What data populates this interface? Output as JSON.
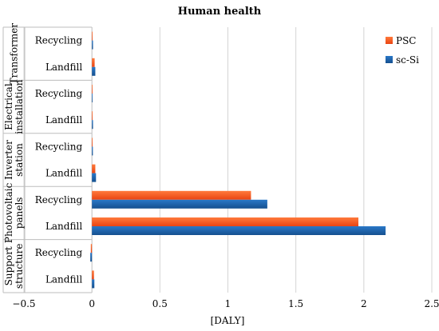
{
  "chart_data": {
    "type": "bar",
    "orientation": "horizontal",
    "title": "Human health",
    "xlabel": "[DALY]",
    "ylabel": "",
    "xlim": [
      -0.5,
      2.5
    ],
    "xticks": [
      -0.5,
      0,
      0.5,
      1,
      1.5,
      2,
      2.5
    ],
    "xtick_labels": [
      "−0.5",
      "0",
      "0.5",
      "1",
      "1.5",
      "2",
      "2.5"
    ],
    "grid": "vertical",
    "legend_position": "top-right",
    "groups": [
      {
        "label_lines": [
          "Transformer"
        ],
        "categories": [
          "Recycling",
          "Landfill"
        ]
      },
      {
        "label_lines": [
          "Electrical",
          "installation"
        ],
        "categories": [
          "Recycling",
          "Landfill"
        ]
      },
      {
        "label_lines": [
          "Inverter",
          "station"
        ],
        "categories": [
          "Recycling",
          "Landfill"
        ]
      },
      {
        "label_lines": [
          "Photovoltaic",
          "panels"
        ],
        "categories": [
          "Recycling",
          "Landfill"
        ]
      },
      {
        "label_lines": [
          "Support",
          "structure"
        ],
        "categories": [
          "Recycling",
          "Landfill"
        ]
      }
    ],
    "series": [
      {
        "name": "PSC",
        "color": "#f4511e",
        "values": [
          0.005,
          0.02,
          0.001,
          0.005,
          0.005,
          0.025,
          1.17,
          1.96,
          -0.008,
          0.015
        ]
      },
      {
        "name": "sc-Si",
        "color": "#1f5fa8",
        "values": [
          0.008,
          0.025,
          0.002,
          0.008,
          0.007,
          0.03,
          1.29,
          2.16,
          -0.012,
          0.018
        ]
      }
    ]
  }
}
